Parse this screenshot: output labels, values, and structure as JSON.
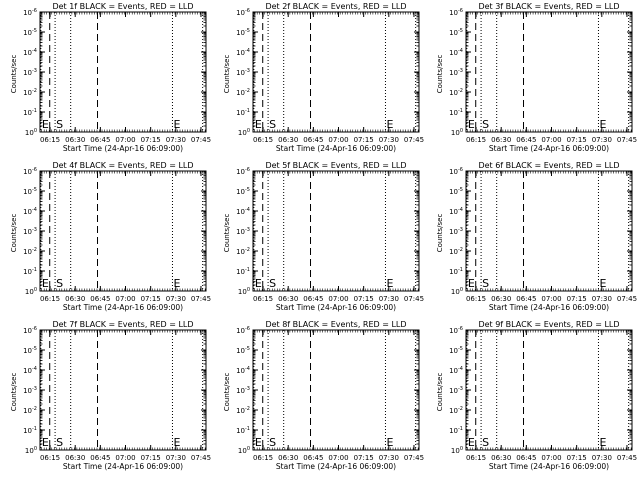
{
  "chart_data": [
    {
      "type": "line",
      "title": "Det 1f BLACK = Events, RED = LLD",
      "xlabel": "Start Time (24-Apr-16 06:09:00)",
      "ylabel": "Counts/sec",
      "x_tick_labels": [
        "06:15",
        "06:30",
        "06:45",
        "07:00",
        "07:15",
        "07:30",
        "07:45"
      ],
      "y_tick_labels": [
        {
          "base": "10",
          "exp": "0"
        },
        {
          "base": "10",
          "exp": "-1"
        },
        {
          "base": "10",
          "exp": "-2"
        },
        {
          "base": "10",
          "exp": "-3"
        },
        {
          "base": "10",
          "exp": "-4"
        },
        {
          "base": "10",
          "exp": "-5"
        },
        {
          "base": "10",
          "exp": "-6"
        }
      ],
      "y_scale": "log",
      "ylim_exp": [
        0,
        -6
      ],
      "x_range_minutes": [
        0,
        99
      ],
      "x_tick_minutes": [
        6,
        21,
        36,
        51,
        66,
        81,
        96
      ],
      "markers": [
        {
          "type": "dotted",
          "minute": 0.5,
          "label": "E"
        },
        {
          "type": "dashed",
          "minute": 5.8
        },
        {
          "type": "dotted",
          "minute": 9,
          "label": "S"
        },
        {
          "type": "dotted",
          "minute": 18.3
        },
        {
          "type": "dashed",
          "minute": 34.3
        },
        {
          "type": "dotted",
          "minute": 79,
          "label": "E"
        },
        {
          "type": "dotted",
          "minute": 97
        }
      ]
    },
    {
      "type": "line",
      "title": "Det 2f BLACK = Events, RED = LLD",
      "xlabel": "Start Time (24-Apr-16 06:09:00)",
      "ylabel": "Counts/sec",
      "x_tick_labels": [
        "06:15",
        "06:30",
        "06:45",
        "07:00",
        "07:15",
        "07:30",
        "07:45"
      ],
      "y_tick_labels": [
        {
          "base": "10",
          "exp": "0"
        },
        {
          "base": "10",
          "exp": "-1"
        },
        {
          "base": "10",
          "exp": "-2"
        },
        {
          "base": "10",
          "exp": "-3"
        },
        {
          "base": "10",
          "exp": "-4"
        },
        {
          "base": "10",
          "exp": "-5"
        },
        {
          "base": "10",
          "exp": "-6"
        }
      ],
      "y_scale": "log",
      "ylim_exp": [
        0,
        -6
      ],
      "x_range_minutes": [
        0,
        99
      ],
      "x_tick_minutes": [
        6,
        21,
        36,
        51,
        66,
        81,
        96
      ],
      "markers": [
        {
          "type": "dotted",
          "minute": 0.5,
          "label": "E"
        },
        {
          "type": "dashed",
          "minute": 5.8
        },
        {
          "type": "dotted",
          "minute": 9,
          "label": "S"
        },
        {
          "type": "dotted",
          "minute": 18.3
        },
        {
          "type": "dashed",
          "minute": 34.3
        },
        {
          "type": "dotted",
          "minute": 79,
          "label": "E"
        },
        {
          "type": "dotted",
          "minute": 97
        }
      ]
    },
    {
      "type": "line",
      "title": "Det 3f BLACK = Events, RED = LLD",
      "xlabel": "Start Time (24-Apr-16 06:09:00)",
      "ylabel": "Counts/sec",
      "x_tick_labels": [
        "06:15",
        "06:30",
        "06:45",
        "07:00",
        "07:15",
        "07:30",
        "07:45"
      ],
      "y_tick_labels": [
        {
          "base": "10",
          "exp": "0"
        },
        {
          "base": "10",
          "exp": "-1"
        },
        {
          "base": "10",
          "exp": "-2"
        },
        {
          "base": "10",
          "exp": "-3"
        },
        {
          "base": "10",
          "exp": "-4"
        },
        {
          "base": "10",
          "exp": "-5"
        },
        {
          "base": "10",
          "exp": "-6"
        }
      ],
      "y_scale": "log",
      "ylim_exp": [
        0,
        -6
      ],
      "x_range_minutes": [
        0,
        99
      ],
      "x_tick_minutes": [
        6,
        21,
        36,
        51,
        66,
        81,
        96
      ],
      "markers": [
        {
          "type": "dotted",
          "minute": 0.5,
          "label": "E"
        },
        {
          "type": "dashed",
          "minute": 5.8
        },
        {
          "type": "dotted",
          "minute": 9,
          "label": "S"
        },
        {
          "type": "dotted",
          "minute": 18.3
        },
        {
          "type": "dashed",
          "minute": 34.3
        },
        {
          "type": "dotted",
          "minute": 79,
          "label": "E"
        },
        {
          "type": "dotted",
          "minute": 97
        }
      ]
    },
    {
      "type": "line",
      "title": "Det 4f BLACK = Events, RED = LLD",
      "xlabel": "Start Time (24-Apr-16 06:09:00)",
      "ylabel": "Counts/sec",
      "x_tick_labels": [
        "06:15",
        "06:30",
        "06:45",
        "07:00",
        "07:15",
        "07:30",
        "07:45"
      ],
      "y_tick_labels": [
        {
          "base": "10",
          "exp": "0"
        },
        {
          "base": "10",
          "exp": "-1"
        },
        {
          "base": "10",
          "exp": "-2"
        },
        {
          "base": "10",
          "exp": "-3"
        },
        {
          "base": "10",
          "exp": "-4"
        },
        {
          "base": "10",
          "exp": "-5"
        },
        {
          "base": "10",
          "exp": "-6"
        }
      ],
      "y_scale": "log",
      "ylim_exp": [
        0,
        -6
      ],
      "x_range_minutes": [
        0,
        99
      ],
      "x_tick_minutes": [
        6,
        21,
        36,
        51,
        66,
        81,
        96
      ],
      "markers": [
        {
          "type": "dotted",
          "minute": 0.5,
          "label": "E"
        },
        {
          "type": "dashed",
          "minute": 5.8
        },
        {
          "type": "dotted",
          "minute": 9,
          "label": "S"
        },
        {
          "type": "dotted",
          "minute": 18.3
        },
        {
          "type": "dashed",
          "minute": 34.3
        },
        {
          "type": "dotted",
          "minute": 79,
          "label": "E"
        },
        {
          "type": "dotted",
          "minute": 97
        }
      ]
    },
    {
      "type": "line",
      "title": "Det 5f BLACK = Events, RED = LLD",
      "xlabel": "Start Time (24-Apr-16 06:09:00)",
      "ylabel": "Counts/sec",
      "x_tick_labels": [
        "06:15",
        "06:30",
        "06:45",
        "07:00",
        "07:15",
        "07:30",
        "07:45"
      ],
      "y_tick_labels": [
        {
          "base": "10",
          "exp": "0"
        },
        {
          "base": "10",
          "exp": "-1"
        },
        {
          "base": "10",
          "exp": "-2"
        },
        {
          "base": "10",
          "exp": "-3"
        },
        {
          "base": "10",
          "exp": "-4"
        },
        {
          "base": "10",
          "exp": "-5"
        },
        {
          "base": "10",
          "exp": "-6"
        }
      ],
      "y_scale": "log",
      "ylim_exp": [
        0,
        -6
      ],
      "x_range_minutes": [
        0,
        99
      ],
      "x_tick_minutes": [
        6,
        21,
        36,
        51,
        66,
        81,
        96
      ],
      "markers": [
        {
          "type": "dotted",
          "minute": 0.5,
          "label": "E"
        },
        {
          "type": "dashed",
          "minute": 5.8
        },
        {
          "type": "dotted",
          "minute": 9,
          "label": "S"
        },
        {
          "type": "dotted",
          "minute": 18.3
        },
        {
          "type": "dashed",
          "minute": 34.3
        },
        {
          "type": "dotted",
          "minute": 79,
          "label": "E"
        },
        {
          "type": "dotted",
          "minute": 97
        }
      ]
    },
    {
      "type": "line",
      "title": "Det 6f BLACK = Events, RED = LLD",
      "xlabel": "Start Time (24-Apr-16 06:09:00)",
      "ylabel": "Counts/sec",
      "x_tick_labels": [
        "06:15",
        "06:30",
        "06:45",
        "07:00",
        "07:15",
        "07:30",
        "07:45"
      ],
      "y_tick_labels": [
        {
          "base": "10",
          "exp": "0"
        },
        {
          "base": "10",
          "exp": "-1"
        },
        {
          "base": "10",
          "exp": "-2"
        },
        {
          "base": "10",
          "exp": "-3"
        },
        {
          "base": "10",
          "exp": "-4"
        },
        {
          "base": "10",
          "exp": "-5"
        },
        {
          "base": "10",
          "exp": "-6"
        }
      ],
      "y_scale": "log",
      "ylim_exp": [
        0,
        -6
      ],
      "x_range_minutes": [
        0,
        99
      ],
      "x_tick_minutes": [
        6,
        21,
        36,
        51,
        66,
        81,
        96
      ],
      "markers": [
        {
          "type": "dotted",
          "minute": 0.5,
          "label": "E"
        },
        {
          "type": "dashed",
          "minute": 5.8
        },
        {
          "type": "dotted",
          "minute": 9,
          "label": "S"
        },
        {
          "type": "dotted",
          "minute": 18.3
        },
        {
          "type": "dashed",
          "minute": 34.3
        },
        {
          "type": "dotted",
          "minute": 79,
          "label": "E"
        },
        {
          "type": "dotted",
          "minute": 97
        }
      ]
    },
    {
      "type": "line",
      "title": "Det 7f BLACK = Events, RED = LLD",
      "xlabel": "Start Time (24-Apr-16 06:09:00)",
      "ylabel": "Counts/sec",
      "x_tick_labels": [
        "06:15",
        "06:30",
        "06:45",
        "07:00",
        "07:15",
        "07:30",
        "07:45"
      ],
      "y_tick_labels": [
        {
          "base": "10",
          "exp": "0"
        },
        {
          "base": "10",
          "exp": "-1"
        },
        {
          "base": "10",
          "exp": "-2"
        },
        {
          "base": "10",
          "exp": "-3"
        },
        {
          "base": "10",
          "exp": "-4"
        },
        {
          "base": "10",
          "exp": "-5"
        },
        {
          "base": "10",
          "exp": "-6"
        }
      ],
      "y_scale": "log",
      "ylim_exp": [
        0,
        -6
      ],
      "x_range_minutes": [
        0,
        99
      ],
      "x_tick_minutes": [
        6,
        21,
        36,
        51,
        66,
        81,
        96
      ],
      "markers": [
        {
          "type": "dotted",
          "minute": 0.5,
          "label": "E"
        },
        {
          "type": "dashed",
          "minute": 5.8
        },
        {
          "type": "dotted",
          "minute": 9,
          "label": "S"
        },
        {
          "type": "dotted",
          "minute": 18.3
        },
        {
          "type": "dashed",
          "minute": 34.3
        },
        {
          "type": "dotted",
          "minute": 79,
          "label": "E"
        },
        {
          "type": "dotted",
          "minute": 97
        }
      ]
    },
    {
      "type": "line",
      "title": "Det 8f BLACK = Events, RED = LLD",
      "xlabel": "Start Time (24-Apr-16 06:09:00)",
      "ylabel": "Counts/sec",
      "x_tick_labels": [
        "06:15",
        "06:30",
        "06:45",
        "07:00",
        "07:15",
        "07:30",
        "07:45"
      ],
      "y_tick_labels": [
        {
          "base": "10",
          "exp": "0"
        },
        {
          "base": "10",
          "exp": "-1"
        },
        {
          "base": "10",
          "exp": "-2"
        },
        {
          "base": "10",
          "exp": "-3"
        },
        {
          "base": "10",
          "exp": "-4"
        },
        {
          "base": "10",
          "exp": "-5"
        },
        {
          "base": "10",
          "exp": "-6"
        }
      ],
      "y_scale": "log",
      "ylim_exp": [
        0,
        -6
      ],
      "x_range_minutes": [
        0,
        99
      ],
      "x_tick_minutes": [
        6,
        21,
        36,
        51,
        66,
        81,
        96
      ],
      "markers": [
        {
          "type": "dotted",
          "minute": 0.5,
          "label": "E"
        },
        {
          "type": "dashed",
          "minute": 5.8
        },
        {
          "type": "dotted",
          "minute": 9,
          "label": "S"
        },
        {
          "type": "dotted",
          "minute": 18.3
        },
        {
          "type": "dashed",
          "minute": 34.3
        },
        {
          "type": "dotted",
          "minute": 79,
          "label": "E"
        },
        {
          "type": "dotted",
          "minute": 97
        }
      ]
    },
    {
      "type": "line",
      "title": "Det 9f BLACK = Events, RED = LLD",
      "xlabel": "Start Time (24-Apr-16 06:09:00)",
      "ylabel": "Counts/sec",
      "x_tick_labels": [
        "06:15",
        "06:30",
        "06:45",
        "07:00",
        "07:15",
        "07:30",
        "07:45"
      ],
      "y_tick_labels": [
        {
          "base": "10",
          "exp": "0"
        },
        {
          "base": "10",
          "exp": "-1"
        },
        {
          "base": "10",
          "exp": "-2"
        },
        {
          "base": "10",
          "exp": "-3"
        },
        {
          "base": "10",
          "exp": "-4"
        },
        {
          "base": "10",
          "exp": "-5"
        },
        {
          "base": "10",
          "exp": "-6"
        }
      ],
      "y_scale": "log",
      "ylim_exp": [
        0,
        -6
      ],
      "x_range_minutes": [
        0,
        99
      ],
      "x_tick_minutes": [
        6,
        21,
        36,
        51,
        66,
        81,
        96
      ],
      "markers": [
        {
          "type": "dotted",
          "minute": 0.5,
          "label": "E"
        },
        {
          "type": "dashed",
          "minute": 5.8
        },
        {
          "type": "dotted",
          "minute": 9,
          "label": "S"
        },
        {
          "type": "dotted",
          "minute": 18.3
        },
        {
          "type": "dashed",
          "minute": 34.3
        },
        {
          "type": "dotted",
          "minute": 79,
          "label": "E"
        },
        {
          "type": "dotted",
          "minute": 97
        }
      ]
    }
  ]
}
